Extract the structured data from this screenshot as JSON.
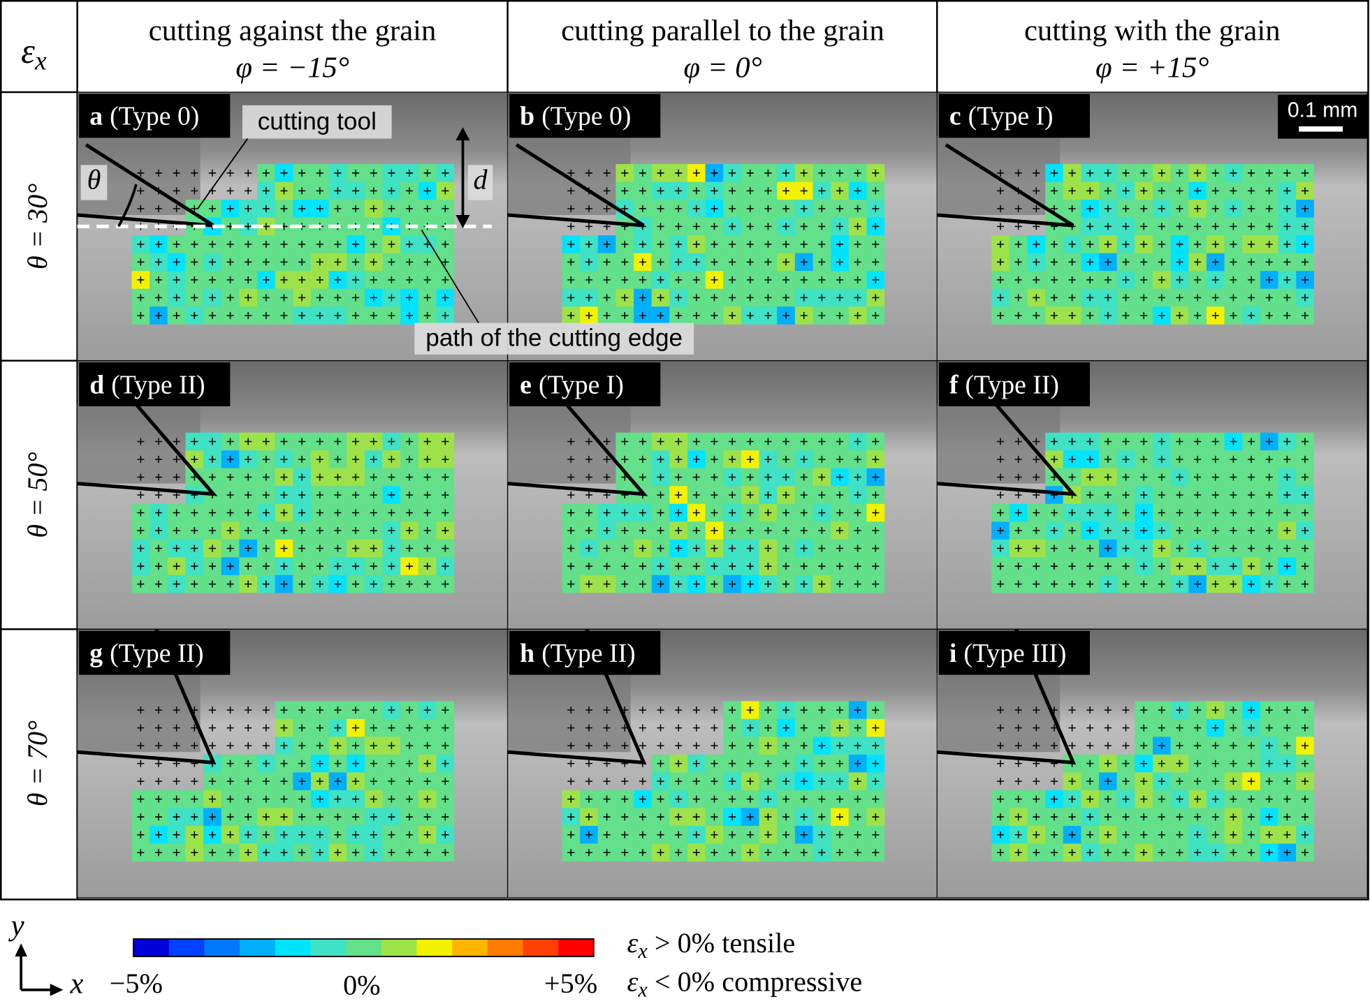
{
  "corner": {
    "symbol": "ε",
    "subscript": "x"
  },
  "columns": [
    {
      "title": "cutting against the grain",
      "angle": "φ = −15°"
    },
    {
      "title": "cutting parallel to the grain",
      "angle": "φ = 0°"
    },
    {
      "title": "cutting with the grain",
      "angle": "φ = +15°"
    }
  ],
  "rows": [
    {
      "label": "θ = 30°"
    },
    {
      "label": "θ = 50°"
    },
    {
      "label": "θ = 70°"
    }
  ],
  "panels": [
    {
      "letter": "a",
      "type": "(Type 0)"
    },
    {
      "letter": "b",
      "type": "(Type 0)"
    },
    {
      "letter": "c",
      "type": "(Type I)"
    },
    {
      "letter": "d",
      "type": "(Type II)"
    },
    {
      "letter": "e",
      "type": "(Type I)"
    },
    {
      "letter": "f",
      "type": "(Type II)"
    },
    {
      "letter": "g",
      "type": "(Type II)"
    },
    {
      "letter": "h",
      "type": "(Type II)"
    },
    {
      "letter": "i",
      "type": "(Type III)"
    }
  ],
  "annotations": {
    "tool": "cutting tool",
    "angle": "θ",
    "depth": "d",
    "path": "path of the cutting edge",
    "scale": "0.1 mm"
  },
  "colorbar": {
    "colors": [
      "#0000d8",
      "#0040ff",
      "#0078ff",
      "#00b0ff",
      "#00e4ff",
      "#3ee2c4",
      "#62e08a",
      "#9ee24a",
      "#f2f200",
      "#ffb400",
      "#ff7c00",
      "#ff4000",
      "#ff0000"
    ],
    "min_label": "−5%",
    "mid_label": "0%",
    "max_label": "+5%"
  },
  "legend": [
    {
      "symbol": "ε",
      "subscript": "x",
      "text": " > 0% tensile"
    },
    {
      "symbol": "ε",
      "subscript": "x",
      "text": " < 0% compressive"
    }
  ],
  "axes": {
    "y": "y",
    "x": "x"
  }
}
